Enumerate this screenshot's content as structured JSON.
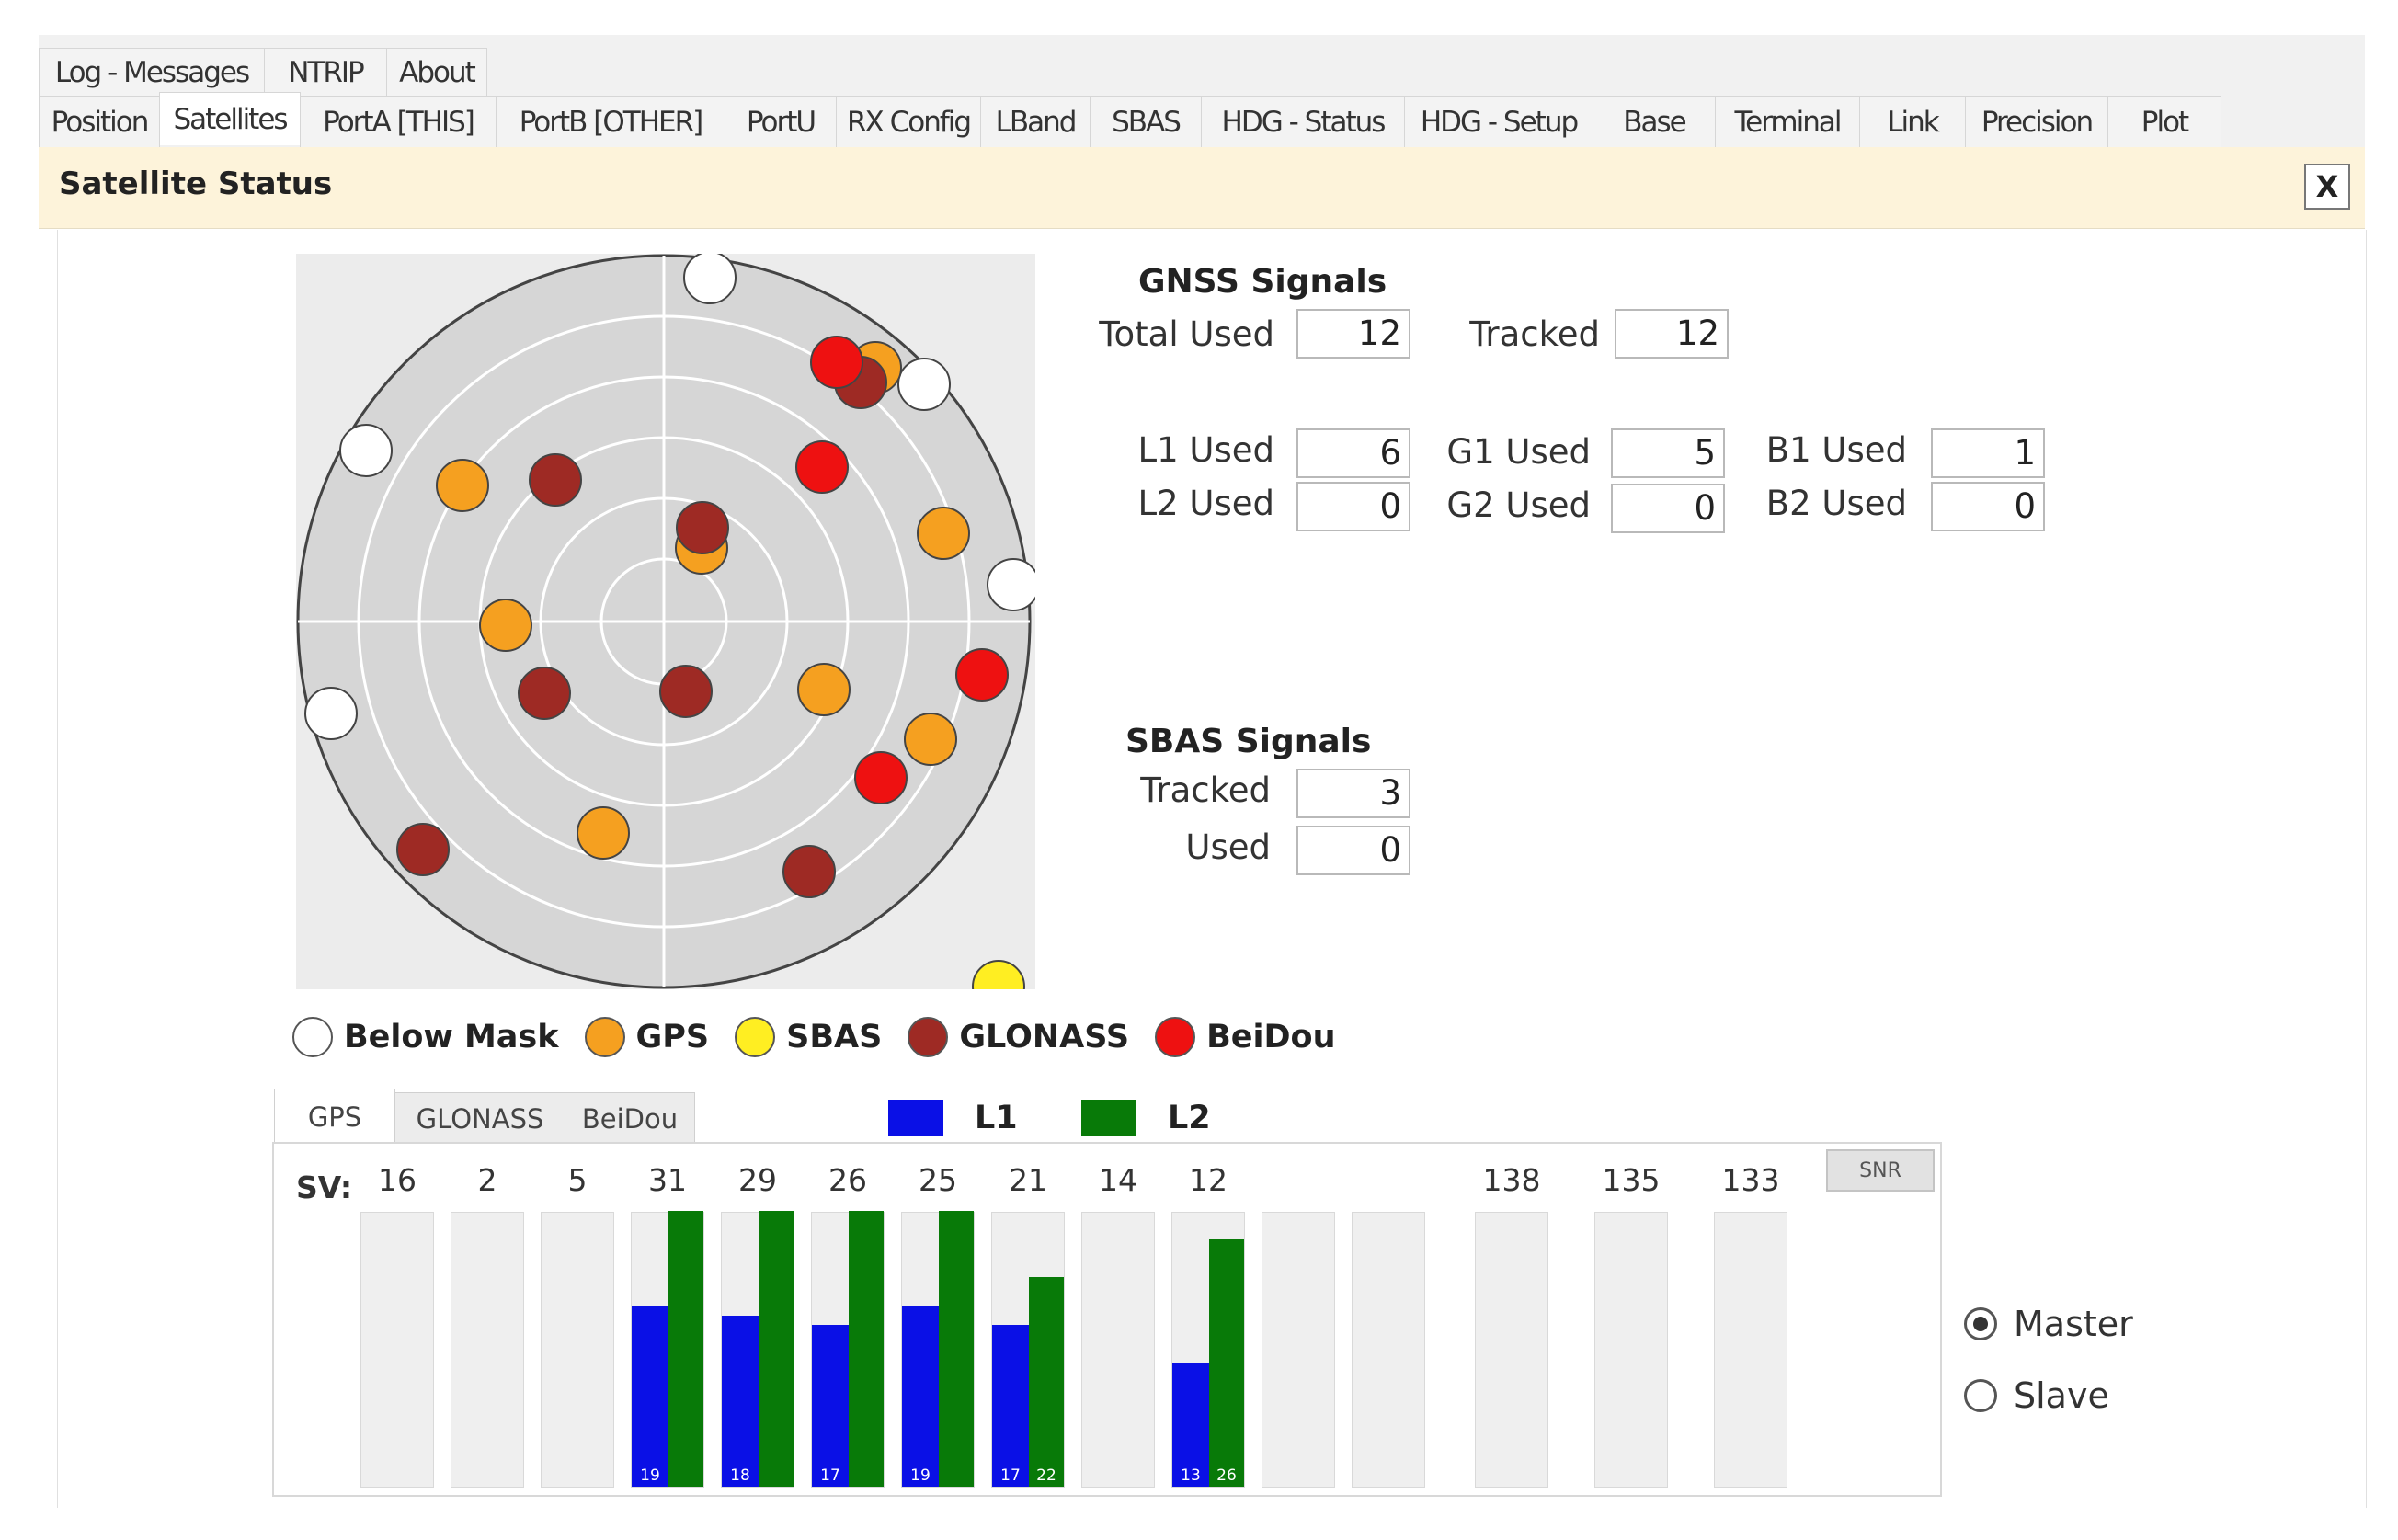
{
  "tabs_row1": [
    "Log - Messages",
    "NTRIP",
    "About"
  ],
  "tabs_row2": [
    "Position",
    "Satellites",
    "PortA [THIS]",
    "PortB [OTHER]",
    "PortU",
    "RX Config",
    "LBand",
    "SBAS",
    "HDG - Status",
    "HDG - Setup",
    "Base",
    "Terminal",
    "Link",
    "Precision",
    "Plot"
  ],
  "active_tab": "Satellites",
  "header": {
    "title": "Satellite Status",
    "close_label": "X"
  },
  "gnss": {
    "title": "GNSS Signals",
    "total_used_label": "Total Used",
    "total_used": "12",
    "tracked_label": "Tracked",
    "tracked": "12",
    "l1_used_label": "L1 Used",
    "l1_used": "6",
    "l2_used_label": "L2 Used",
    "l2_used": "0",
    "g1_used_label": "G1 Used",
    "g1_used": "5",
    "g2_used_label": "G2 Used",
    "g2_used": "0",
    "b1_used_label": "B1 Used",
    "b1_used": "1",
    "b2_used_label": "B2 Used",
    "b2_used": "0"
  },
  "sbas": {
    "title": "SBAS Signals",
    "tracked_label": "Tracked",
    "tracked": "3",
    "used_label": "Used",
    "used": "0"
  },
  "legend": [
    {
      "label": "Below Mask",
      "color": "#ffffff"
    },
    {
      "label": "GPS",
      "color": "#f5a020"
    },
    {
      "label": "SBAS",
      "color": "#ffee22"
    },
    {
      "label": "GLONASS",
      "color": "#9e2a24"
    },
    {
      "label": "BeiDou",
      "color": "#ee1111"
    }
  ],
  "sub_tabs": [
    "GPS",
    "GLONASS",
    "BeiDou"
  ],
  "active_sub_tab": "GPS",
  "signal_legend": [
    {
      "label": "L1",
      "color": "#0a10e6"
    },
    {
      "label": "L2",
      "color": "#087a08"
    }
  ],
  "sv_label": "SV:",
  "snr_button": "SNR",
  "bar_scale_max": 29,
  "svs": [
    {
      "sv": "16"
    },
    {
      "sv": "2"
    },
    {
      "sv": "5"
    },
    {
      "sv": "31",
      "l1": 19,
      "l2": 29
    },
    {
      "sv": "29",
      "l1": 18,
      "l2": 29
    },
    {
      "sv": "26",
      "l1": 17,
      "l2": 29
    },
    {
      "sv": "25",
      "l1": 19,
      "l2": 29
    },
    {
      "sv": "21",
      "l1": 17,
      "l2": 22
    },
    {
      "sv": "14"
    },
    {
      "sv": "12",
      "l1": 13,
      "l2": 26
    },
    {
      "sv": ""
    },
    {
      "sv": ""
    },
    {
      "sv": "138"
    },
    {
      "sv": "135"
    },
    {
      "sv": "133"
    }
  ],
  "radio": {
    "master_label": "Master",
    "slave_label": "Slave",
    "selected": "Master"
  }
}
